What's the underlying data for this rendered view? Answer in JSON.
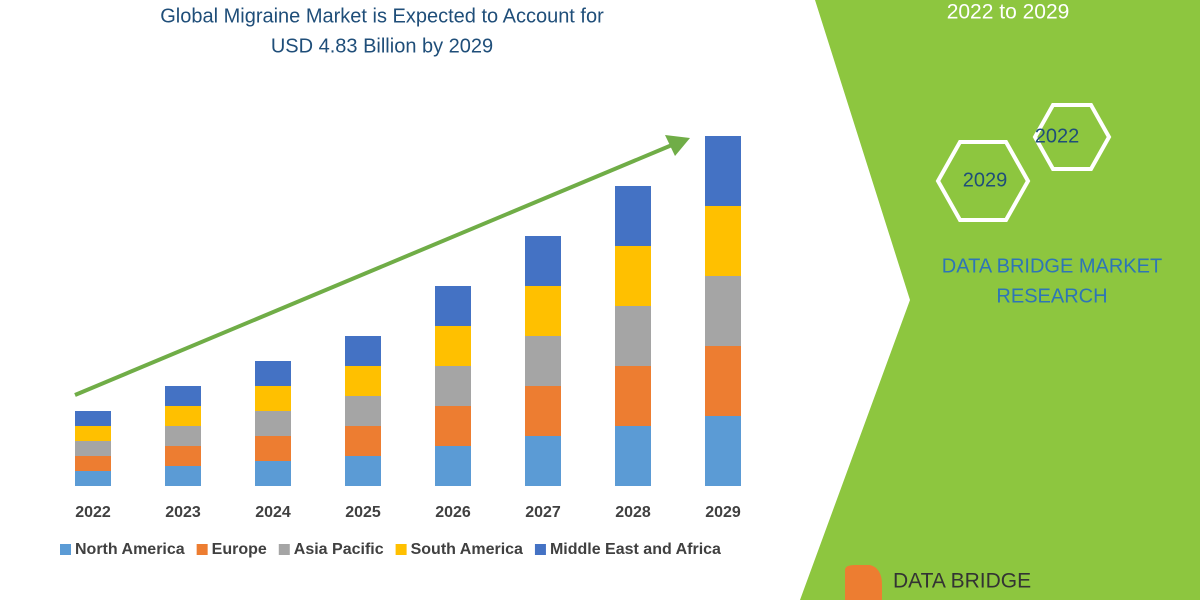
{
  "chart_data": {
    "type": "bar",
    "stacked": true,
    "title": [
      "Global Migraine Market is Expected to Account for",
      "USD 4.83 Billion by 2029"
    ],
    "categories": [
      "2022",
      "2023",
      "2024",
      "2025",
      "2026",
      "2027",
      "2028",
      "2029"
    ],
    "series": [
      {
        "name": "North America",
        "color": "#5b9bd5",
        "values": [
          15,
          20,
          25,
          30,
          40,
          50,
          60,
          70
        ]
      },
      {
        "name": "Europe",
        "color": "#ed7d31",
        "values": [
          15,
          20,
          25,
          30,
          40,
          50,
          60,
          70
        ]
      },
      {
        "name": "Asia Pacific",
        "color": "#a5a5a5",
        "values": [
          15,
          20,
          25,
          30,
          40,
          50,
          60,
          70
        ]
      },
      {
        "name": "South America",
        "color": "#ffc000",
        "values": [
          15,
          20,
          25,
          30,
          40,
          50,
          60,
          70
        ]
      },
      {
        "name": "Middle East and Africa",
        "color": "#4472c4",
        "values": [
          15,
          20,
          25,
          30,
          40,
          50,
          60,
          70
        ]
      }
    ],
    "ylim": [
      0,
      350
    ],
    "legend": "bottom"
  },
  "side_panel": {
    "period": "2022 to 2029",
    "hexagons": [
      "2022",
      "2029"
    ],
    "brand": [
      "DATA BRIDGE MARKET",
      "RESEARCH"
    ],
    "logo": "DATA BRIDGE"
  }
}
